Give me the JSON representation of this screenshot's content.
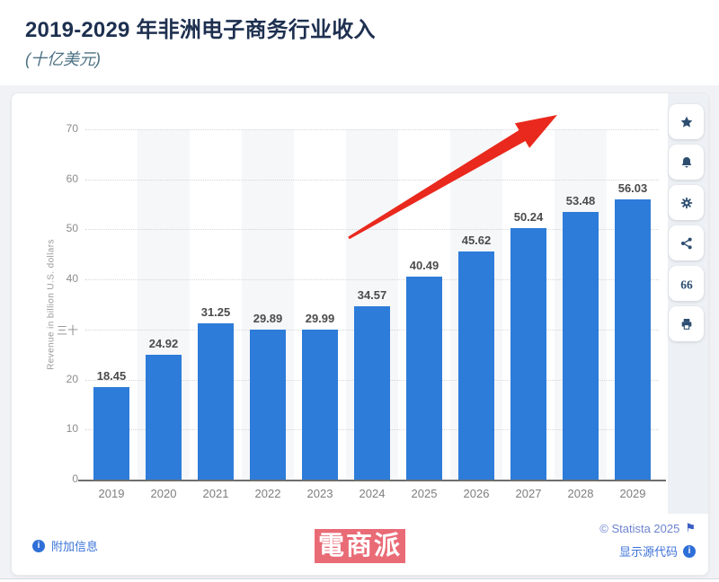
{
  "header": {
    "title": "2019-2029 年非洲电子商务行业收入",
    "subtitle": "(十亿美元)"
  },
  "chart_data": {
    "type": "bar",
    "title": "2019-2029 年非洲电子商务行业收入",
    "subtitle_unit": "(十亿美元)",
    "categories": [
      "2019",
      "2020",
      "2021",
      "2022",
      "2023",
      "2024",
      "2025",
      "2026",
      "2027",
      "2028",
      "2029"
    ],
    "values": [
      18.45,
      24.92,
      31.25,
      29.89,
      29.99,
      34.57,
      40.49,
      45.62,
      50.24,
      53.48,
      56.03
    ],
    "value_labels": [
      "18.45",
      "24.92",
      "31.25",
      "29.89",
      "29.99",
      "34.57",
      "40.49",
      "45.62",
      "50.24",
      "53.48",
      "56.03"
    ],
    "xlabel": "",
    "ylabel": "Revenue in billion U.S. dollars",
    "ylim": [
      0,
      70
    ],
    "ytick_step": 10,
    "ytick_labels": [
      "0",
      "10",
      "20",
      "三十",
      "40",
      "50",
      "60",
      "70"
    ],
    "grid": "horizontal-dotted",
    "legend": "none",
    "bar_color": "#2d7cd9",
    "band_color": "#f6f7f9",
    "annotation": "red upward trend arrow over 2024-2028"
  },
  "sidebar": {
    "buttons": [
      {
        "name": "favorite",
        "icon": "star-icon"
      },
      {
        "name": "notifications",
        "icon": "bell-icon"
      },
      {
        "name": "settings",
        "icon": "gear-icon"
      },
      {
        "name": "share",
        "icon": "share-icon"
      },
      {
        "name": "cite",
        "icon": "quote-icon"
      },
      {
        "name": "print",
        "icon": "printer-icon"
      }
    ],
    "icon_color": "#2d4e71"
  },
  "footer": {
    "additional_info": "附加信息",
    "copyright": "© Statista 2025",
    "show_source": "显示源代码"
  },
  "watermark": {
    "text": "電商派",
    "background": "#e6565f"
  },
  "colors": {
    "title": "#1e3050",
    "subtitle": "#4d7184",
    "bar": "#2d7cd9",
    "arrow": "#e9291d",
    "footer_link": "#3b74d8",
    "rail_bg": "#edf0f4"
  }
}
